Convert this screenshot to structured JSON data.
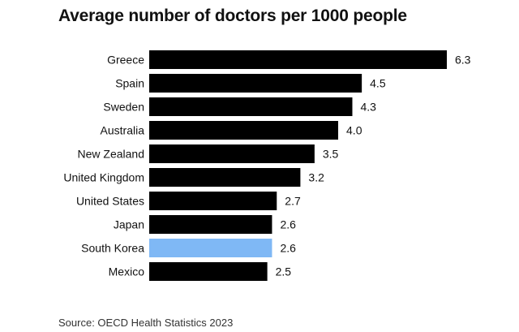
{
  "title": "Average number of doctors per 1000 people",
  "source": "Source: OECD Health Statistics 2023",
  "colors": {
    "bar": "#000000",
    "highlight": "#7fb8f5"
  },
  "chart_data": {
    "type": "bar",
    "orientation": "horizontal",
    "title": "Average number of doctors per 1000 people",
    "categories": [
      "Greece",
      "Spain",
      "Sweden",
      "Australia",
      "New Zealand",
      "United Kingdom",
      "United States",
      "Japan",
      "South Korea",
      "Mexico"
    ],
    "values": [
      6.3,
      4.5,
      4.3,
      4.0,
      3.5,
      3.2,
      2.7,
      2.6,
      2.6,
      2.5
    ],
    "value_labels": [
      "6.3",
      "4.5",
      "4.3",
      "4.0",
      "3.5",
      "3.2",
      "2.7",
      "2.6",
      "2.6",
      "2.5"
    ],
    "highlighted_category": "South Korea",
    "xlim": [
      0,
      6.3
    ],
    "grid": false,
    "legend": "none"
  }
}
